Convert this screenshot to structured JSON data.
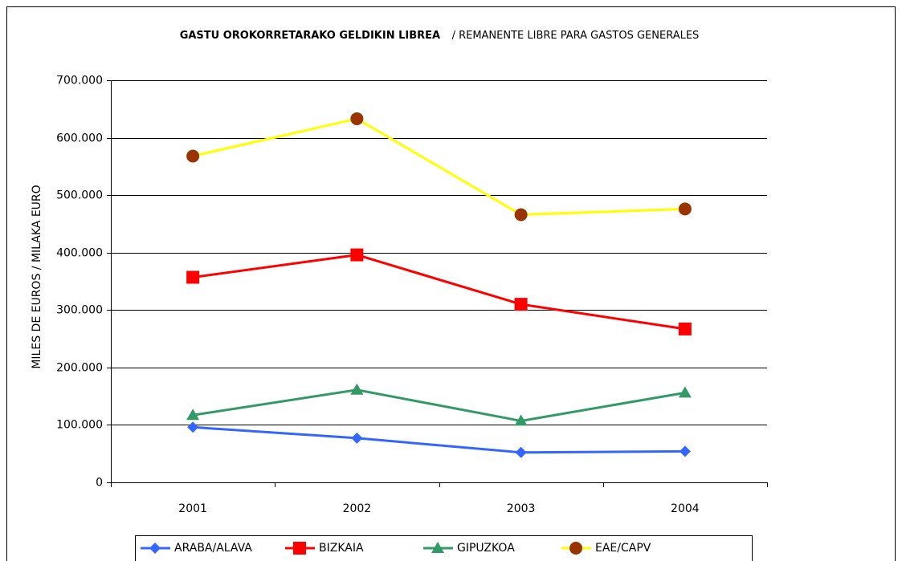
{
  "chart_data": {
    "type": "line",
    "title": "GASTU OROKORRETARAKO GELDIKIN LIBREA",
    "subtitle": "/ REMANENTE LIBRE PARA GASTOS GENERALES",
    "y_label": "MILES DE EUROS / MILAKA EURO",
    "categories": [
      "2001",
      "2002",
      "2003",
      "2004"
    ],
    "ylim": [
      0,
      700000
    ],
    "yticks": [
      0,
      {
        "value": 100000,
        "label": "100.000"
      },
      {
        "value": 200000,
        "label": "200.000"
      },
      {
        "value": 300000,
        "label": "300.000"
      },
      {
        "value": 400000,
        "label": "400.000"
      },
      {
        "value": 500000,
        "label": "500.000"
      },
      {
        "value": 600000,
        "label": "600.000"
      },
      {
        "value": 700000,
        "label": "700.000"
      }
    ],
    "grid": true,
    "legend": "bottom",
    "series": [
      {
        "name": "ARABA/ALAVA",
        "color": "#3366ff",
        "marker": "diamond",
        "marker_color": "#3366ff",
        "values": [
          96000,
          77000,
          52000,
          54000
        ]
      },
      {
        "name": "BIZKAIA",
        "color": "#ff0000",
        "marker": "square",
        "marker_color": "#ff0000",
        "values": [
          357000,
          396000,
          310000,
          267000
        ]
      },
      {
        "name": "GIPUZKOA",
        "color": "#339966",
        "marker": "triangle",
        "marker_color": "#339966",
        "values": [
          117000,
          161000,
          107000,
          156000
        ]
      },
      {
        "name": "EAE/CAPV",
        "color": "#ffff00",
        "marker": "circle",
        "marker_color": "#993300",
        "values": [
          568000,
          633000,
          466000,
          476000
        ]
      }
    ]
  }
}
